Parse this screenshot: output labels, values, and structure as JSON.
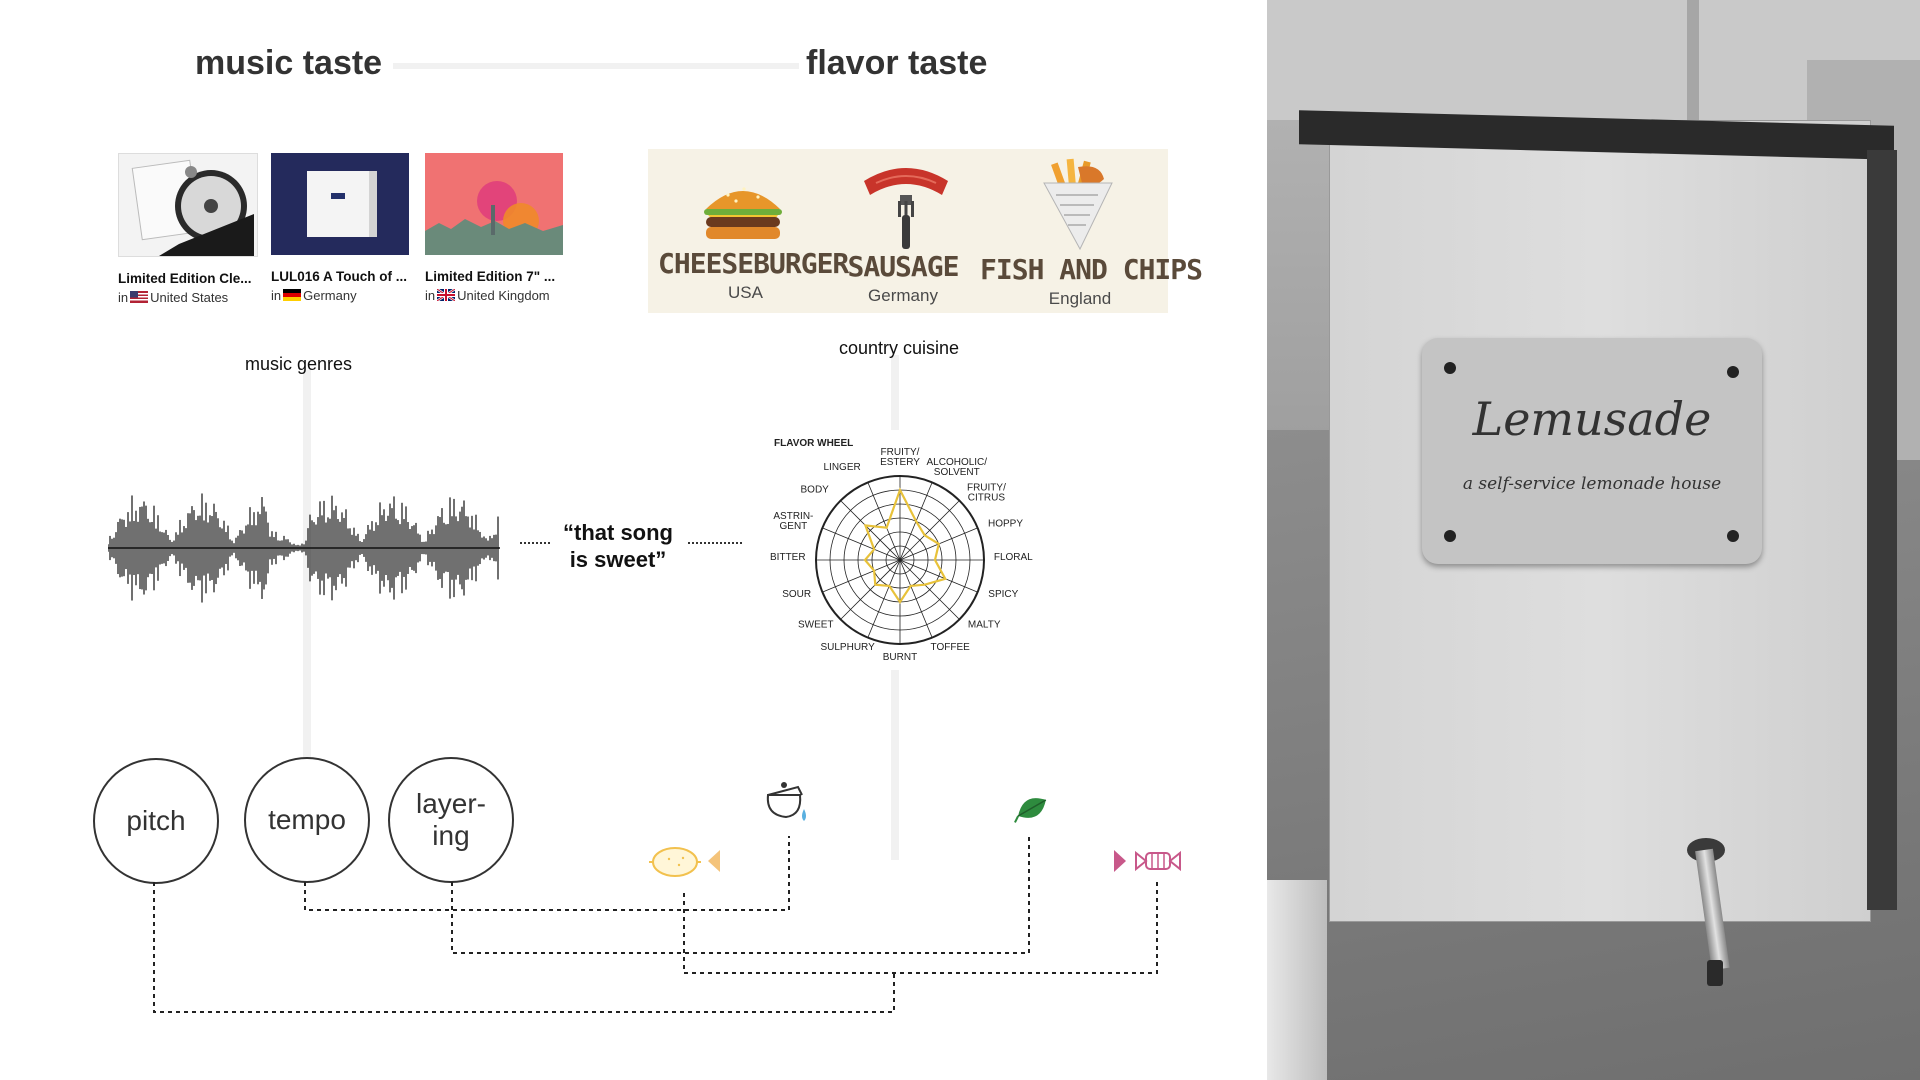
{
  "headings": {
    "music": "music taste",
    "flavor": "flavor taste"
  },
  "albums": [
    {
      "title": "Limited Edition Cle...",
      "origin_prefix": "in",
      "country": "United States"
    },
    {
      "title": "LUL016 A Touch of ...",
      "origin_prefix": "in",
      "country": "Germany"
    },
    {
      "title": "Limited Edition 7\" ...",
      "origin_prefix": "in",
      "country": "United Kingdom"
    }
  ],
  "foods": [
    {
      "name": "CHEESEBURGER",
      "country": "USA"
    },
    {
      "name": "SAUSAGE",
      "country": "Germany"
    },
    {
      "name": "FISH AND CHIPS",
      "country": "England"
    }
  ],
  "labels": {
    "music_genres": "music genres",
    "country_cuisine": "country cuisine",
    "quote": "“that song is sweet”"
  },
  "quote_lines": [
    "“that song",
    "is sweet”"
  ],
  "flavor_wheel": {
    "title": "FLAVOR WHEEL",
    "labels": [
      "FRUITY/ ESTERY",
      "ALCOHOLIC/ SOLVENT",
      "FRUITY/ CITRUS",
      "HOPPY",
      "FLORAL",
      "SPICY",
      "MALTY",
      "TOFFEE",
      "BURNT",
      "SULPHURY",
      "SWEET",
      "SOUR",
      "BITTER",
      "ASTRIN- GENT",
      "BODY",
      "LINGER"
    ]
  },
  "attributes": [
    {
      "lines": [
        "pitch"
      ]
    },
    {
      "lines": [
        "tempo"
      ]
    },
    {
      "lines": [
        "layer-",
        "ing"
      ]
    }
  ],
  "photo": {
    "title": "Lemusade",
    "subtitle": "a self-service lemonade house"
  },
  "colors": {
    "gradient_start": "#f4c37a",
    "gradient_end": "#c8588a",
    "flavor_line": "#e8c23a"
  },
  "icons": [
    "lemon-icon",
    "sugar-jar-icon",
    "mint-leaf-icon",
    "candy-icon"
  ]
}
